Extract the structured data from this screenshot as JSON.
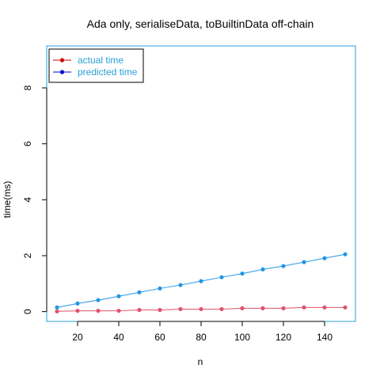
{
  "chart_data": {
    "type": "line",
    "title": "Ada only, serialiseData, toBuiltinData off-chain",
    "xlabel": "n",
    "ylabel": "time(ms)",
    "xlim": [
      5,
      155
    ],
    "ylim": [
      -0.35,
      9.5
    ],
    "x_ticks": [
      "20",
      "40",
      "60",
      "80",
      "100",
      "120",
      "140"
    ],
    "y_ticks": [
      "0",
      "2",
      "4",
      "6",
      "8"
    ],
    "legend_position": "top-left",
    "x": [
      10,
      20,
      30,
      40,
      50,
      60,
      70,
      80,
      90,
      100,
      110,
      120,
      130,
      140,
      150
    ],
    "series": [
      {
        "name": "actual time",
        "point_color": "#df536b",
        "line_color": "#df536b",
        "legend_color": "#cc0000",
        "values": [
          0.01,
          0.03,
          0.03,
          0.03,
          0.06,
          0.06,
          0.09,
          0.09,
          0.09,
          0.12,
          0.12,
          0.12,
          0.15,
          0.15,
          0.15
        ]
      },
      {
        "name": "predicted time",
        "point_color": "#2297e6",
        "line_color": "#2297e6",
        "legend_color": "#0000cc",
        "values": [
          0.15,
          0.29,
          0.41,
          0.55,
          0.69,
          0.83,
          0.95,
          1.09,
          1.23,
          1.36,
          1.51,
          1.63,
          1.77,
          1.91,
          2.05
        ]
      }
    ],
    "frame_color": "#2a9fd6",
    "legend_text_color": "#2a9fd6"
  }
}
